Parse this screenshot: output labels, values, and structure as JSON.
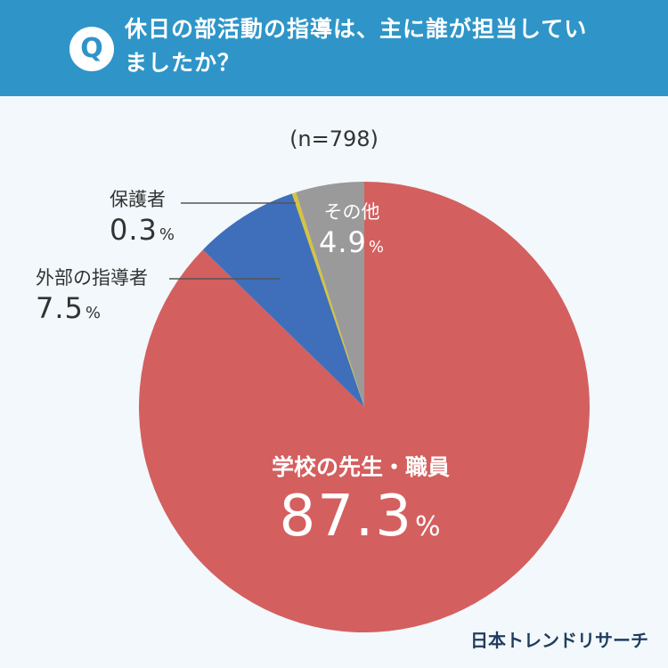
{
  "header": {
    "q_letter": "Q",
    "question": "休日の部活動の指導は、主に誰が担当していましたか？"
  },
  "sample_label": "(n=798)",
  "percent_sign": "%",
  "brand": "日本トレンドリサーチ",
  "colors": {
    "header_bg": "#2f95c8",
    "background": "#f2f8fb"
  },
  "chart_data": {
    "type": "pie",
    "title": "休日の部活動の指導は、主に誰が担当していましたか？",
    "n": 798,
    "slices": [
      {
        "label": "学校の先生・職員",
        "value": 87.3,
        "color": "#d45f5f"
      },
      {
        "label": "外部の指導者",
        "value": 7.5,
        "color": "#3f6fbb"
      },
      {
        "label": "保護者",
        "value": 0.3,
        "color": "#d6c33c"
      },
      {
        "label": "その他",
        "value": 4.9,
        "color": "#9a9a9a"
      }
    ]
  }
}
